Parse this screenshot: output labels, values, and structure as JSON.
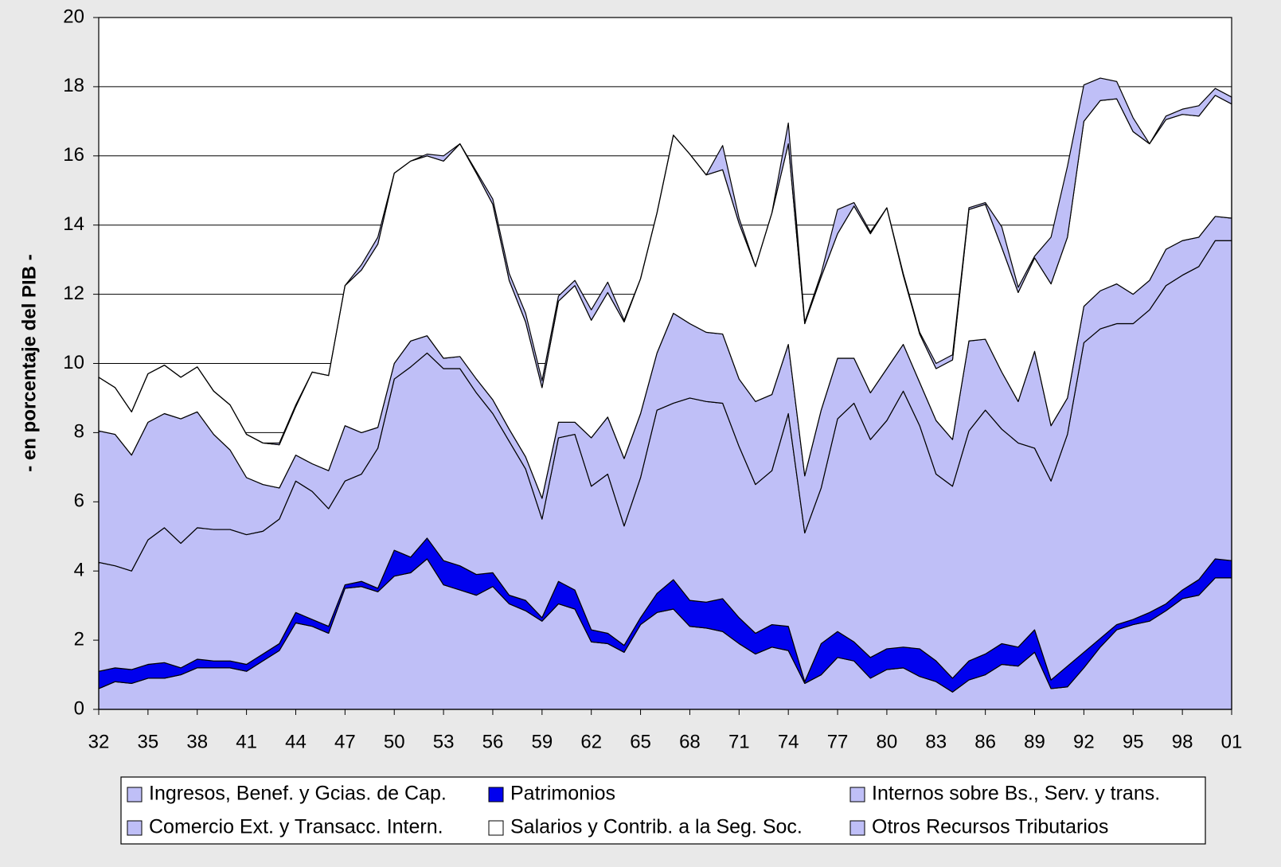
{
  "chart_data": {
    "type": "area",
    "stacked": true,
    "y_label": "- en porcentaje del PIB -",
    "categories": [
      "32",
      null,
      null,
      "35",
      null,
      null,
      "38",
      null,
      null,
      "41",
      null,
      null,
      "44",
      null,
      null,
      "47",
      null,
      null,
      "50",
      null,
      null,
      "53",
      null,
      null,
      "56",
      null,
      null,
      "59",
      null,
      null,
      "62",
      null,
      null,
      "65",
      null,
      null,
      "68",
      null,
      null,
      "71",
      null,
      null,
      "74",
      null,
      null,
      "77",
      null,
      null,
      "80",
      null,
      null,
      "83",
      null,
      null,
      "86",
      null,
      null,
      "89",
      null,
      null,
      "92",
      null,
      null,
      "95",
      null,
      null,
      "98",
      null,
      null,
      "01"
    ],
    "series": [
      {
        "name": "Ingresos, Benef. y Gcias. de Cap.",
        "color": "#bfbff7",
        "values": [
          0.6,
          0.8,
          0.75,
          0.9,
          0.9,
          1.0,
          1.2,
          1.2,
          1.2,
          1.1,
          1.4,
          1.7,
          2.5,
          2.4,
          2.2,
          3.5,
          3.55,
          3.4,
          3.85,
          3.95,
          4.35,
          3.6,
          3.45,
          3.3,
          3.55,
          3.05,
          2.85,
          2.55,
          3.05,
          2.9,
          1.95,
          1.9,
          1.65,
          2.45,
          2.8,
          2.9,
          2.4,
          2.35,
          2.25,
          1.9,
          1.6,
          1.8,
          1.7,
          0.75,
          1.0,
          1.5,
          1.4,
          0.9,
          1.15,
          1.2,
          0.95,
          0.8,
          0.5,
          0.85,
          1.0,
          1.3,
          1.25,
          1.65,
          0.6,
          0.65,
          1.2,
          1.8,
          2.3,
          2.45,
          2.55,
          2.85,
          3.2,
          3.3,
          3.8,
          3.8
        ]
      },
      {
        "name": "Patrimonios",
        "color": "#0000ee",
        "values": [
          0.5,
          0.4,
          0.4,
          0.4,
          0.45,
          0.2,
          0.25,
          0.2,
          0.2,
          0.2,
          0.2,
          0.2,
          0.3,
          0.2,
          0.2,
          0.1,
          0.15,
          0.1,
          0.75,
          0.45,
          0.6,
          0.7,
          0.7,
          0.6,
          0.4,
          0.25,
          0.3,
          0.1,
          0.65,
          0.55,
          0.35,
          0.3,
          0.2,
          0.2,
          0.55,
          0.85,
          0.75,
          0.75,
          0.95,
          0.75,
          0.6,
          0.65,
          0.7,
          0.05,
          0.9,
          0.75,
          0.55,
          0.6,
          0.6,
          0.6,
          0.8,
          0.6,
          0.4,
          0.55,
          0.6,
          0.6,
          0.55,
          0.65,
          0.25,
          0.6,
          0.45,
          0.25,
          0.15,
          0.15,
          0.25,
          0.2,
          0.25,
          0.45,
          0.55,
          0.5
        ]
      },
      {
        "name": "Internos sobre Bs., Serv. y trans.",
        "color": "#bfbff7",
        "values": [
          3.15,
          2.95,
          2.85,
          3.6,
          3.9,
          3.6,
          3.8,
          3.8,
          3.8,
          3.75,
          3.55,
          3.6,
          3.8,
          3.7,
          3.4,
          3.0,
          3.1,
          4.05,
          4.95,
          5.5,
          5.35,
          5.55,
          5.7,
          5.25,
          4.6,
          4.45,
          3.8,
          2.85,
          4.15,
          4.5,
          4.15,
          4.6,
          3.45,
          4.05,
          5.3,
          5.1,
          5.85,
          5.8,
          5.65,
          4.95,
          4.3,
          4.45,
          6.15,
          4.3,
          4.5,
          6.15,
          6.9,
          6.3,
          6.6,
          7.4,
          6.45,
          5.4,
          5.55,
          6.65,
          7.05,
          6.2,
          5.9,
          5.25,
          5.75,
          6.7,
          8.95,
          8.95,
          8.7,
          8.55,
          8.75,
          9.2,
          9.1,
          9.05,
          9.2,
          9.25
        ]
      },
      {
        "name": "Comercio Ext. y Transacc. Intern.",
        "color": "#bfbff7",
        "values": [
          3.8,
          3.8,
          3.35,
          3.4,
          3.3,
          3.6,
          3.35,
          2.75,
          2.3,
          1.65,
          1.35,
          0.9,
          0.75,
          0.8,
          1.1,
          1.6,
          1.2,
          0.6,
          0.45,
          0.75,
          0.5,
          0.3,
          0.35,
          0.4,
          0.4,
          0.35,
          0.35,
          0.6,
          0.45,
          0.35,
          1.4,
          1.65,
          1.95,
          1.85,
          1.65,
          2.6,
          2.15,
          2.0,
          2.0,
          1.95,
          2.4,
          2.2,
          2.0,
          1.65,
          2.25,
          1.75,
          1.3,
          1.35,
          1.5,
          1.35,
          1.25,
          1.55,
          1.35,
          2.6,
          2.05,
          1.65,
          1.2,
          2.8,
          1.6,
          1.05,
          1.05,
          1.1,
          1.15,
          0.85,
          0.85,
          1.05,
          1.0,
          0.85,
          0.7,
          0.65
        ]
      },
      {
        "name": "Salarios y Contrib. a la Seg. Soc.",
        "color": "#ffffff",
        "values": [
          1.55,
          1.35,
          1.25,
          1.4,
          1.4,
          1.2,
          1.3,
          1.25,
          1.3,
          1.25,
          1.2,
          1.25,
          1.4,
          2.65,
          2.75,
          4.05,
          4.7,
          5.3,
          5.5,
          5.2,
          5.2,
          5.7,
          6.15,
          5.95,
          5.65,
          4.3,
          3.9,
          3.2,
          3.5,
          3.95,
          3.4,
          3.6,
          3.95,
          3.9,
          4.05,
          5.15,
          4.9,
          4.55,
          4.75,
          4.5,
          3.9,
          5.25,
          5.8,
          4.4,
          3.85,
          3.6,
          4.4,
          4.6,
          4.65,
          2.0,
          1.4,
          1.5,
          2.3,
          3.8,
          3.9,
          3.6,
          3.15,
          2.7,
          4.1,
          4.65,
          5.35,
          5.5,
          5.35,
          4.7,
          3.95,
          3.75,
          3.65,
          3.5,
          3.5,
          3.3
        ]
      },
      {
        "name": "Otros Recursos Tributarios",
        "color": "#bfbff7",
        "values": [
          0,
          0,
          0,
          0,
          0,
          0,
          0,
          0,
          0,
          0,
          0,
          0.05,
          0.05,
          0,
          0,
          0,
          0.15,
          0.2,
          0,
          0,
          0.05,
          0.15,
          0,
          0.05,
          0.15,
          0.2,
          0.25,
          0.2,
          0.15,
          0.15,
          0.3,
          0.3,
          0.05,
          0,
          0,
          0,
          0,
          0,
          0.7,
          0.15,
          0,
          0,
          0.6,
          0.05,
          0.1,
          0.7,
          0.1,
          0.05,
          0,
          0.05,
          0.05,
          0.15,
          0.15,
          0.05,
          0.05,
          0.6,
          0.15,
          0.05,
          1.35,
          2.05,
          1.05,
          0.65,
          0.5,
          0.4,
          0,
          0.1,
          0.15,
          0.3,
          0.2,
          0.2
        ]
      }
    ],
    "ylim": [
      0,
      20
    ],
    "yticks": [
      0,
      2,
      4,
      6,
      8,
      10,
      12,
      14,
      16,
      18,
      20
    ],
    "grid": true,
    "legend": "bottom"
  }
}
